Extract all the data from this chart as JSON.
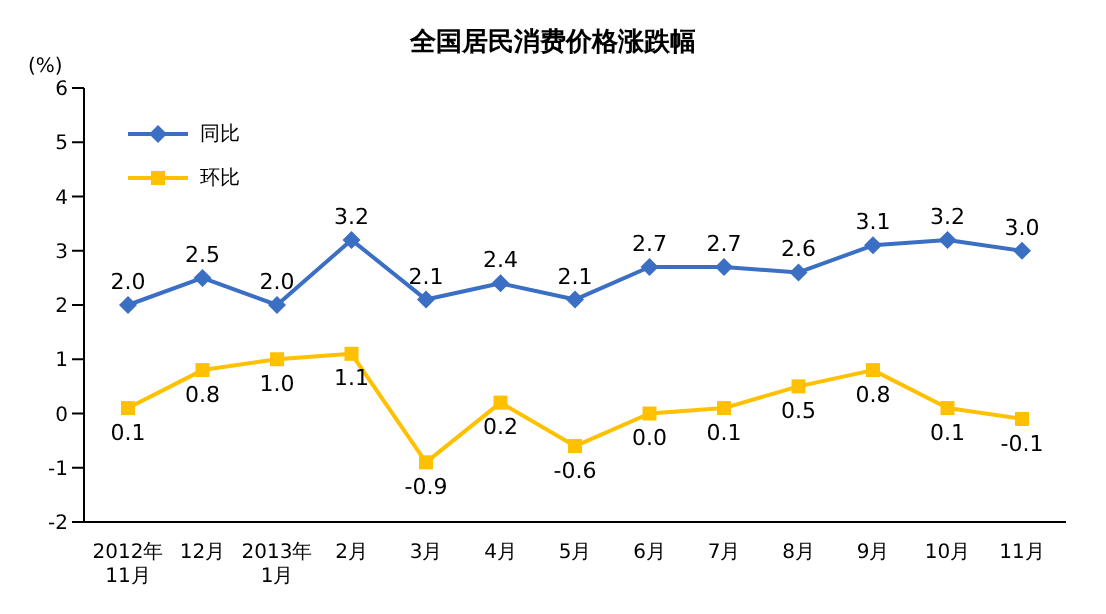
{
  "chart_data": {
    "type": "line",
    "title": "全国居民消费价格涨跌幅",
    "ylabel": "(%)",
    "categories": [
      "2012年\n11月",
      "12月",
      "2013年\n1月",
      "2月",
      "3月",
      "4月",
      "5月",
      "6月",
      "7月",
      "8月",
      "9月",
      "10月",
      "11月"
    ],
    "series": [
      {
        "name": "同比",
        "color": "#3a6fc4",
        "marker": "diamond",
        "values": [
          2.0,
          2.5,
          2.0,
          3.2,
          2.1,
          2.4,
          2.1,
          2.7,
          2.7,
          2.6,
          3.1,
          3.2,
          3.0
        ],
        "value_labels": [
          "2.0",
          "2.5",
          "2.0",
          "3.2",
          "2.1",
          "2.4",
          "2.1",
          "2.7",
          "2.7",
          "2.6",
          "3.1",
          "3.2",
          "3.0"
        ]
      },
      {
        "name": "环比",
        "color": "#ffc000",
        "marker": "square",
        "values": [
          0.1,
          0.8,
          1.0,
          1.1,
          -0.9,
          0.2,
          -0.6,
          0.0,
          0.1,
          0.5,
          0.8,
          0.1,
          -0.1
        ],
        "value_labels": [
          "0.1",
          "0.8",
          "1.0",
          "1.1",
          "-0.9",
          "0.2",
          "-0.6",
          "0.0",
          "0.1",
          "0.5",
          "0.8",
          "0.1",
          "-0.1"
        ]
      }
    ],
    "ylim": [
      -2,
      6
    ],
    "yticks": [
      -2,
      -1,
      0,
      1,
      2,
      3,
      4,
      5,
      6
    ],
    "legend": "top left",
    "line_style": "solid"
  }
}
